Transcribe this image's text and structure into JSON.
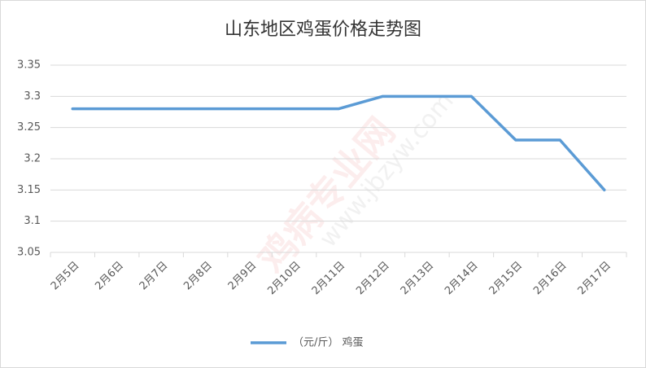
{
  "chart_data": {
    "type": "line",
    "title": "山东地区鸡蛋价格走势图",
    "categories": [
      "2月5日",
      "2月6日",
      "2月7日",
      "2月8日",
      "2月9日",
      "2月10日",
      "2月11日",
      "2月12日",
      "2月13日",
      "2月14日",
      "2月15日",
      "2月16日",
      "2月17日"
    ],
    "series": [
      {
        "name": "（元/斤） 鸡蛋",
        "color": "#5b9bd5",
        "values": [
          3.28,
          3.28,
          3.28,
          3.28,
          3.28,
          3.28,
          3.28,
          3.3,
          3.3,
          3.3,
          3.23,
          3.23,
          3.15
        ]
      }
    ],
    "ylim": [
      3.05,
      3.35
    ],
    "yticks": [
      3.05,
      3.1,
      3.15,
      3.2,
      3.25,
      3.3,
      3.35
    ],
    "grid": true,
    "legend": "bottom",
    "watermark": [
      "鸡病专业网",
      "www.jbzyw.com"
    ]
  }
}
